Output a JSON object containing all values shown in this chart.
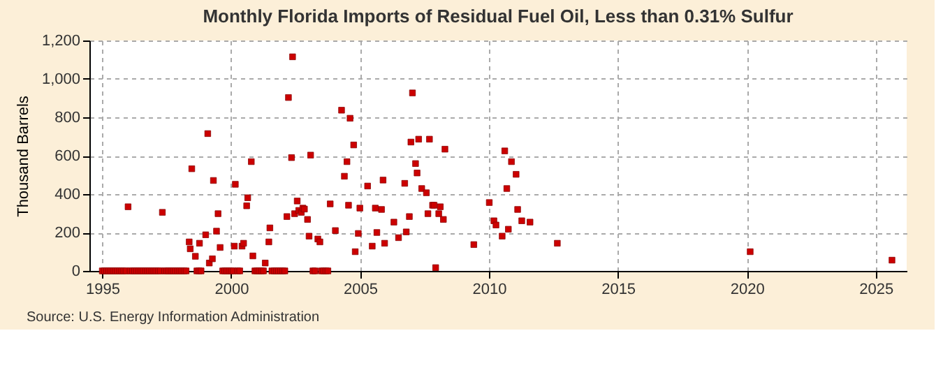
{
  "chart_data": {
    "type": "scatter",
    "title": "Monthly Florida Imports of Residual Fuel Oil, Less than 0.31% Sulfur",
    "ylabel": "Thousand Barrels",
    "annotations": [
      "Source: U.S. Energy Information Administration"
    ],
    "xlim": [
      1994.5,
      2026.2
    ],
    "xticks": [
      1995,
      2000,
      2005,
      2010,
      2015,
      2020,
      2025
    ],
    "ylim": [
      0,
      1200
    ],
    "yticks": [
      0,
      200,
      400,
      600,
      800,
      {
        "value": 1000,
        "label": "1,000"
      },
      {
        "value": 1200,
        "label": "1,200"
      }
    ],
    "grid": true,
    "marker": "square",
    "legend": false,
    "series": [
      {
        "color": "#cc0000",
        "x": [
          1995.0,
          1995.08,
          1995.17,
          1995.25,
          1995.33,
          1995.42,
          1995.5,
          1995.58,
          1995.67,
          1995.75,
          1995.83,
          1995.92,
          1996.08,
          1996.17,
          1996.25,
          1996.33,
          1996.42,
          1996.5,
          1996.58,
          1996.67,
          1996.75,
          1996.83,
          1996.92,
          1997.0,
          1997.08,
          1997.17,
          1997.25,
          1997.42,
          1997.5,
          1997.58,
          1997.67,
          1997.75,
          1997.83,
          1997.92,
          1998.0,
          1998.08,
          1998.17,
          1998.25,
          1998.67,
          1998.75,
          1998.83,
          1999.67,
          1999.75,
          1999.83,
          1999.92,
          2000.0,
          2000.08,
          2000.25,
          2000.33,
          2000.92,
          2001.0,
          2001.08,
          2001.17,
          2001.25,
          2001.58,
          2001.67,
          2001.75,
          2001.83,
          2001.92,
          2002.0,
          2002.08,
          2003.17,
          2003.25,
          2003.5,
          2003.58,
          2003.67,
          2003.75,
          1996.0,
          1997.33,
          1998.37,
          1998.47,
          1998.41,
          1998.61,
          1998.77,
          1999.01,
          1999.09,
          1999.15,
          1999.27,
          1999.31,
          1999.43,
          1999.49,
          1999.57,
          2000.16,
          2000.12,
          2000.42,
          2000.48,
          2000.6,
          2000.64,
          2000.78,
          2000.84,
          2001.32,
          2001.46,
          2001.5,
          2002.16,
          2002.22,
          2002.34,
          2002.38,
          2002.46,
          2002.56,
          2002.62,
          2002.72,
          2002.78,
          2002.84,
          2002.96,
          2003.02,
          2003.08,
          2003.36,
          2003.44,
          2003.84,
          2004.04,
          2004.28,
          2004.61,
          2004.75,
          2004.49,
          2004.39,
          2004.55,
          2004.99,
          2004.81,
          2004.93,
          2005.29,
          2005.47,
          2005.59,
          2005.65,
          2005.83,
          2005.89,
          2005.95,
          2006.31,
          2006.49,
          2006.73,
          2006.79,
          2006.91,
          2006.97,
          2007.03,
          2007.15,
          2007.21,
          2007.27,
          2007.39,
          2007.57,
          2007.63,
          2007.69,
          2007.81,
          2007.93,
          2007.87,
          2008.05,
          2008.11,
          2008.23,
          2008.29,
          2009.41,
          2010.01,
          2010.19,
          2010.27,
          2010.51,
          2010.61,
          2010.69,
          2010.75,
          2010.87,
          2011.05,
          2011.11,
          2011.27,
          2011.59,
          2012.65,
          2020.13,
          2025.63
        ],
        "values": [
          0,
          0,
          0,
          0,
          0,
          0,
          0,
          0,
          0,
          0,
          0,
          0,
          0,
          0,
          0,
          0,
          0,
          0,
          0,
          0,
          0,
          0,
          0,
          0,
          0,
          0,
          0,
          0,
          0,
          0,
          0,
          0,
          0,
          0,
          0,
          0,
          0,
          0,
          0,
          0,
          0,
          0,
          0,
          0,
          0,
          0,
          0,
          0,
          0,
          0,
          0,
          0,
          0,
          0,
          0,
          0,
          0,
          0,
          0,
          0,
          0,
          0,
          0,
          0,
          0,
          0,
          0,
          334,
          305,
          151,
          532,
          115,
          76,
          144,
          188,
          715,
          41,
          63,
          471,
          207,
          298,
          122,
          451,
          129,
          129,
          144,
          339,
          381,
          569,
          78,
          41,
          151,
          224,
          283,
          903,
          590,
          1115,
          298,
          364,
          315,
          305,
          327,
          322,
          268,
          181,
          603,
          166,
          151,
          349,
          210,
          837,
          795,
          656,
          569,
          493,
          342,
          327,
          100,
          195,
          442,
          129,
          327,
          200,
          320,
          473,
          144,
          254,
          173,
          456,
          203,
          283,
          671,
          927,
          559,
          510,
          686,
          429,
          407,
          298,
          686,
          342,
          17,
          342,
          298,
          334,
          268,
          634,
          137,
          356,
          261,
          239,
          181,
          625,
          429,
          217,
          569,
          503,
          320,
          261,
          254,
          144,
          100,
          56
        ]
      }
    ]
  }
}
